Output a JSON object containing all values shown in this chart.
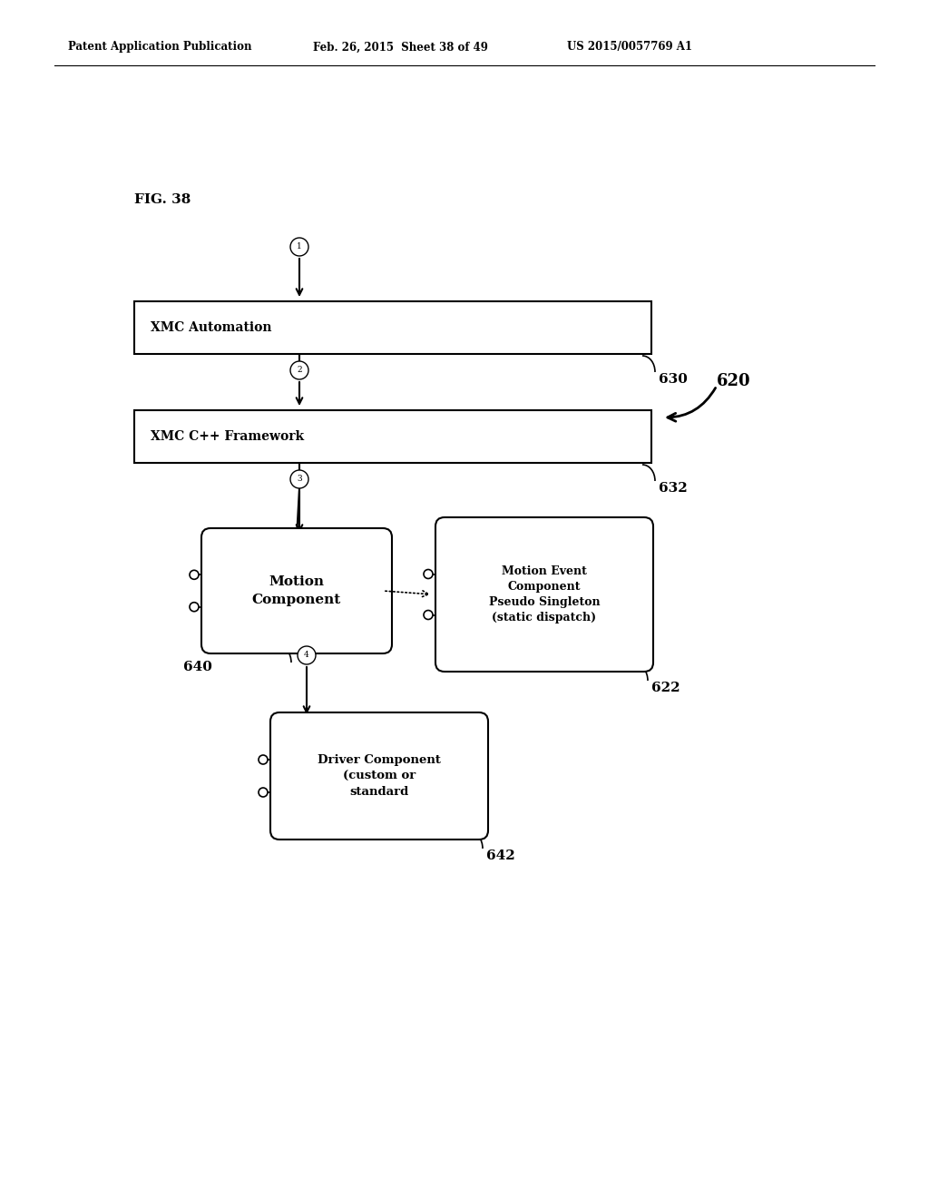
{
  "title_line1": "Patent Application Publication",
  "title_line2": "Feb. 26, 2015  Sheet 38 of 49",
  "title_line3": "US 2015/0057769 A1",
  "fig_label": "FIG. 38",
  "box1_text": "XMC Automation",
  "box2_text": "XMC C++ Framework",
  "box3_text": "Motion\nComponent",
  "box4_text": "Motion Event\nComponent\nPseudo Singleton\n(static dispatch)",
  "box5_text": "Driver Component\n(custom or\nstandard",
  "label_630": "630",
  "label_632": "632",
  "label_620": "620",
  "label_622": "622",
  "label_640": "640",
  "label_642": "642",
  "bg_color": "#ffffff",
  "line_color": "#000000",
  "text_color": "#000000"
}
